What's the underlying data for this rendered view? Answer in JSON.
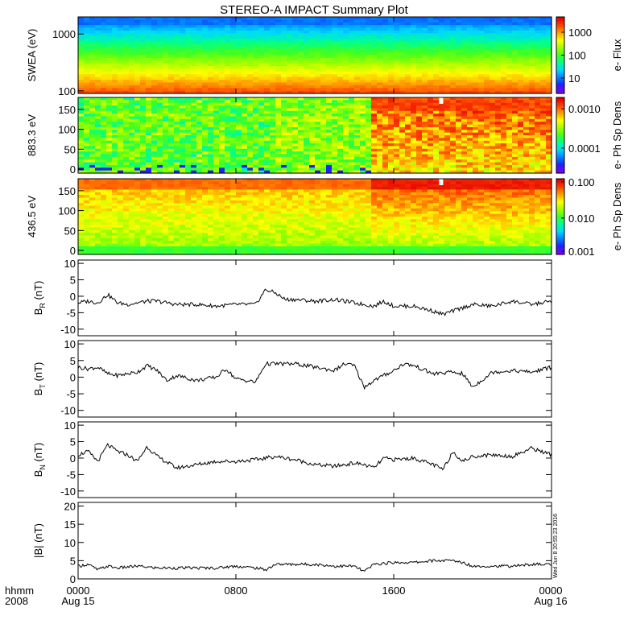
{
  "figure": {
    "title": "STEREO-A IMPACT Summary Plot",
    "footer_left": [
      "hhmm",
      "2008"
    ],
    "timestamp": "Wed Jun 8 20:55:23 2016",
    "x_ticks": [
      {
        "hour": 0,
        "line1": "0000",
        "line2": "Aug 15"
      },
      {
        "hour": 8,
        "line1": "0800",
        "line2": ""
      },
      {
        "hour": 16,
        "line1": "1600",
        "line2": ""
      },
      {
        "hour": 24,
        "line1": "0000",
        "line2": "Aug 16"
      }
    ],
    "xlim_hours": [
      0,
      24
    ]
  },
  "colors": {
    "colormap": [
      "#8000ff",
      "#2020ff",
      "#0080ff",
      "#00d8ff",
      "#00ff90",
      "#40ff20",
      "#a0ff00",
      "#ffff00",
      "#ffa000",
      "#ff4000",
      "#e00000"
    ],
    "line": "#000000"
  },
  "chart_data": [
    {
      "type": "heatmap",
      "ylabel": "SWEA (eV)",
      "yscale": "log",
      "ylim": [
        90,
        2000
      ],
      "y_ticks": [
        "100",
        "1000"
      ],
      "y_tick_values": [
        100,
        1000
      ],
      "colorbar_label": "e- Flux",
      "colorbar_ticks": [
        "10",
        "100",
        "1000"
      ],
      "colorbar_tick_fractions": [
        0.2,
        0.5,
        0.8
      ],
      "description_levels": {
        "low_energy_100eV": "red/orange (high flux)",
        "mid_300eV": "yellow-green",
        "high_2000eV": "blue"
      }
    },
    {
      "type": "heatmap",
      "ylabel": "883.3 eV",
      "ylim": [
        -10,
        180
      ],
      "y_ticks": [
        "0",
        "50",
        "100",
        "150"
      ],
      "y_tick_values": [
        0,
        50,
        100,
        150
      ],
      "colorbar_label": "e- Ph Sp Dens",
      "colorbar_ticks": [
        "0.0001",
        "0.0010"
      ],
      "colorbar_tick_fractions": [
        0.33,
        0.85
      ]
    },
    {
      "type": "heatmap",
      "ylabel": "436.5 eV",
      "ylim": [
        -10,
        180
      ],
      "y_ticks": [
        "0",
        "50",
        "100",
        "150"
      ],
      "y_tick_values": [
        0,
        50,
        100,
        150
      ],
      "colorbar_label": "e- Ph Sp Dens",
      "colorbar_ticks": [
        "0.001",
        "0.010",
        "0.100"
      ],
      "colorbar_tick_fractions": [
        0.04,
        0.48,
        0.96
      ]
    },
    {
      "type": "line",
      "ylabel": "B",
      "ylabel_sub": "R",
      "ylabel_unit": "(nT)",
      "ylim": [
        -12,
        11
      ],
      "y_ticks": [
        10,
        5,
        0,
        -5,
        -10
      ],
      "x_hours": [
        0,
        0.5,
        1,
        1.5,
        2,
        2.5,
        3,
        3.5,
        4,
        5,
        6,
        7,
        8,
        9,
        9.5,
        10,
        10.5,
        11,
        12,
        13,
        14,
        15,
        15.5,
        16,
        17,
        18,
        18.5,
        19,
        20,
        21,
        22,
        23,
        24
      ],
      "values": [
        -2,
        -1.5,
        -2,
        0.5,
        -2,
        -2.5,
        -2,
        -1.5,
        -1.5,
        -2.5,
        -2.5,
        -3,
        -2.5,
        -2.5,
        2,
        1,
        -1,
        -1,
        -1.5,
        -1,
        -2,
        -3,
        -1.5,
        -3,
        -3,
        -4.5,
        -5.5,
        -4.5,
        -2.5,
        -3,
        -1.5,
        -2.5,
        -1.5
      ]
    },
    {
      "type": "line",
      "ylabel": "B",
      "ylabel_sub": "T",
      "ylabel_unit": "(nT)",
      "ylim": [
        -12,
        11
      ],
      "y_ticks": [
        10,
        5,
        0,
        -5,
        -10
      ],
      "x_hours": [
        0,
        0.5,
        1,
        1.5,
        2,
        2.5,
        3,
        3.5,
        4,
        4.5,
        5,
        6,
        7,
        7.5,
        8,
        9,
        9.5,
        10,
        11,
        12,
        13,
        13.5,
        14,
        14.5,
        15,
        16,
        16.5,
        17,
        18,
        19,
        19.5,
        20,
        21,
        22,
        23,
        24
      ],
      "values": [
        3,
        2.5,
        3,
        1,
        0.5,
        1,
        1.5,
        3.5,
        2,
        -1,
        0.5,
        -1,
        0,
        2.5,
        -0.5,
        -1.5,
        4,
        4,
        4,
        3,
        2,
        4,
        3.5,
        -3,
        -1,
        2,
        4,
        3.5,
        1,
        1.5,
        1,
        -3,
        1.5,
        2,
        1.5,
        3
      ]
    },
    {
      "type": "line",
      "ylabel": "B",
      "ylabel_sub": "N",
      "ylabel_unit": "(nT)",
      "ylim": [
        -12,
        11
      ],
      "y_ticks": [
        10,
        5,
        0,
        -5,
        -10
      ],
      "x_hours": [
        0,
        0.5,
        1,
        1.5,
        2,
        2.5,
        3,
        3.5,
        4,
        5,
        6,
        7,
        8,
        9,
        10,
        11,
        12,
        13,
        14,
        14.5,
        15,
        15.5,
        16,
        17,
        18,
        18.5,
        19,
        19.5,
        20,
        21,
        22,
        23,
        24
      ],
      "values": [
        1,
        2,
        -1,
        4,
        2,
        1,
        -1,
        3.5,
        0.5,
        -3,
        -2,
        -1,
        -1,
        -0.5,
        0.5,
        -0.5,
        -2,
        -2.5,
        -1.5,
        -2,
        -3,
        0,
        -0.5,
        0,
        -2,
        -3.5,
        2,
        -1,
        0.5,
        1,
        0.5,
        3,
        1
      ]
    },
    {
      "type": "line",
      "ylabel": "|B| (nT)",
      "ylim": [
        0,
        21
      ],
      "y_ticks": [
        20,
        15,
        10,
        5,
        0
      ],
      "x_hours": [
        0,
        0.5,
        1,
        1.5,
        2,
        3,
        4,
        5,
        6,
        7,
        8,
        9,
        9.5,
        10,
        11,
        12,
        13,
        14,
        14.5,
        15,
        16,
        17,
        18,
        19,
        19.5,
        20,
        21,
        22,
        23,
        24
      ],
      "values": [
        3.5,
        4,
        2.5,
        3.5,
        3,
        3.5,
        3,
        3,
        3,
        3,
        3.5,
        3,
        2.5,
        4,
        4,
        4,
        3.5,
        3.5,
        2,
        4,
        4.5,
        4.5,
        5,
        5,
        4.5,
        3.5,
        3.5,
        3.5,
        4,
        4
      ]
    }
  ]
}
